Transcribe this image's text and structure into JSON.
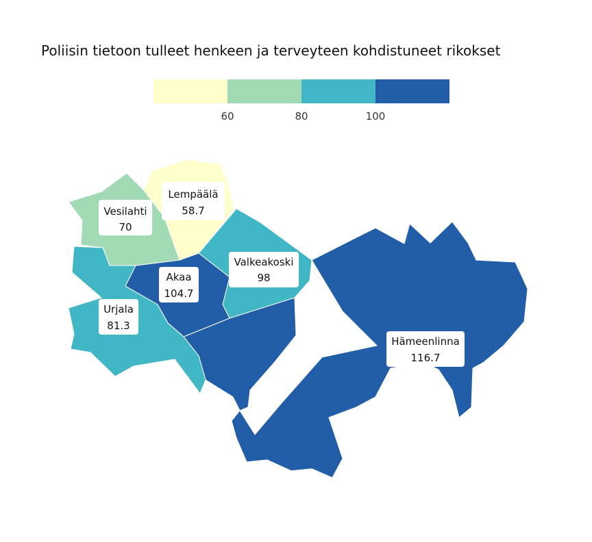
{
  "title": "Poliisin tietoon tulleet henkeen ja terveyteen kohdistuneet rikokset",
  "legend": {
    "bins": [
      {
        "color": "#ffffcc"
      },
      {
        "color": "#a1dab4"
      },
      {
        "color": "#41b6c4"
      },
      {
        "color": "#225ea8"
      }
    ],
    "ticks": [
      "60",
      "80",
      "100"
    ]
  },
  "regions": [
    {
      "name": "Lempäälä",
      "value": "58.7",
      "color": "#ffffcc"
    },
    {
      "name": "Vesilahti",
      "value": "70",
      "color": "#a1dab4"
    },
    {
      "name": "Valkeakoski",
      "value": "98",
      "color": "#41b6c4"
    },
    {
      "name": "Akaa",
      "value": "104.7",
      "color": "#225ea8"
    },
    {
      "name": "Urjala",
      "value": "81.3",
      "color": "#41b6c4"
    },
    {
      "name": "Hämeenlinna",
      "value": "116.7",
      "color": "#225ea8"
    }
  ]
}
